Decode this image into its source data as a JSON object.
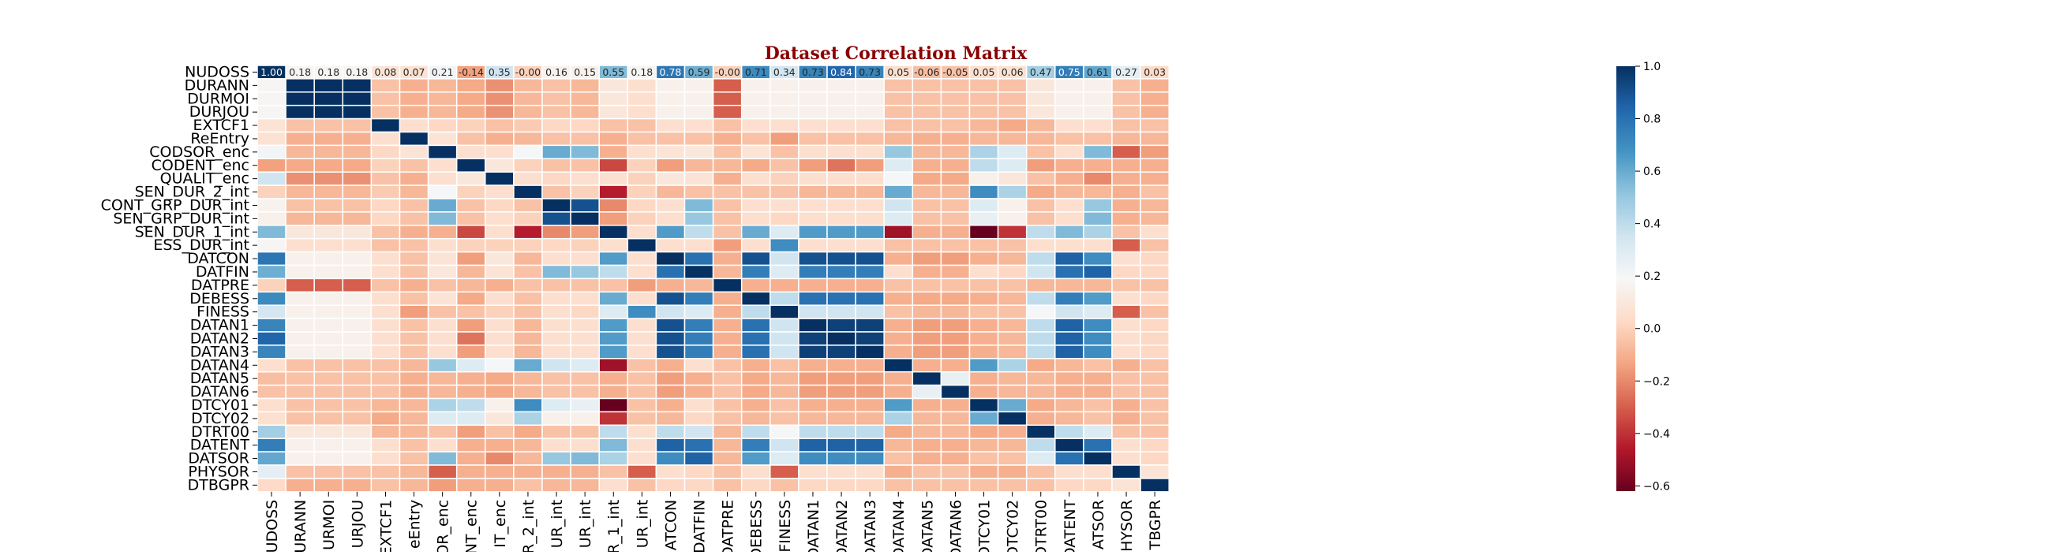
{
  "chart_data": {
    "type": "heatmap",
    "title": "Dataset Correlation Matrix",
    "labels": [
      "NUDOSS",
      "DURANN",
      "DURMOI",
      "DURJOU",
      "EXTCF1",
      "ReEntry",
      "CODSOR_enc",
      "CODENT_enc",
      "QUALIT_enc",
      "SEN_DUR_2_int",
      "CONT_GRP_DUR_int",
      "SEN_GRP_DUR_int",
      "SEN_DUR_1_int",
      "ESS_DUR_int",
      "DATCON",
      "DATFIN",
      "DATPRE",
      "DEBESS",
      "FINESS",
      "DATAN1",
      "DATAN2",
      "DATAN3",
      "DATAN4",
      "DATAN5",
      "DATAN6",
      "DTCY01",
      "DTCY02",
      "DTRT00",
      "DATENT",
      "DATSOR",
      "PHYSOR",
      "DTBGPR"
    ],
    "x_tick_labels": [
      "UDOSS",
      "URANN",
      "URMOI",
      "URJOU",
      "EXTCF1",
      "eEntry",
      "OR_enc",
      "NT_enc",
      "IT_enc",
      "R_2_int",
      "UR_int",
      "UR_int",
      "R_1_int",
      "UR_int",
      "ATCON",
      "DATFIN",
      "DATPRE",
      "DEBESS",
      "FINESS",
      "DATAN1",
      "DATAN2",
      "DATAN3",
      "DATAN4",
      "DATAN5",
      "DATAN6",
      "DTCY01",
      "DTCY02",
      "DTRT00",
      "DATENT",
      "ATSOR",
      "HYSOR",
      "TBGPR"
    ],
    "first_row_annotations": [
      "1.00",
      "0.18",
      "0.18",
      "0.18",
      "0.08",
      "0.07",
      "0.21",
      "-0.14",
      "0.35",
      "-0.00",
      "0.16",
      "0.15",
      "0.55",
      "0.18",
      "0.78",
      "0.59",
      "-0.00",
      "0.71",
      "0.34",
      "0.73",
      "0.84",
      "0.73",
      "0.05",
      "-0.06",
      "-0.05",
      "0.05",
      "0.06",
      "0.47",
      "0.75",
      "0.61",
      "0.27",
      "0.03"
    ],
    "matrix": [
      [
        1.0,
        0.18,
        0.18,
        0.18,
        0.08,
        0.07,
        0.21,
        -0.14,
        0.35,
        -0.0,
        0.16,
        0.15,
        0.55,
        0.18,
        0.78,
        0.59,
        -0.0,
        0.71,
        0.34,
        0.73,
        0.84,
        0.73,
        0.05,
        -0.06,
        -0.05,
        0.05,
        0.06,
        0.47,
        0.75,
        0.61,
        0.27,
        0.03
      ],
      [
        0.18,
        1.0,
        1.0,
        1.0,
        -0.05,
        -0.1,
        -0.08,
        -0.12,
        -0.18,
        -0.08,
        -0.05,
        -0.08,
        0.1,
        0.05,
        0.15,
        0.15,
        -0.3,
        0.15,
        0.15,
        0.15,
        0.15,
        0.15,
        -0.05,
        -0.05,
        -0.05,
        -0.05,
        -0.05,
        0.1,
        0.15,
        0.15,
        -0.05,
        -0.1
      ],
      [
        0.18,
        1.0,
        1.0,
        1.0,
        -0.05,
        -0.1,
        -0.08,
        -0.12,
        -0.18,
        -0.08,
        -0.05,
        -0.08,
        0.1,
        0.05,
        0.15,
        0.15,
        -0.3,
        0.15,
        0.15,
        0.15,
        0.15,
        0.15,
        -0.05,
        -0.05,
        -0.05,
        -0.05,
        -0.05,
        0.1,
        0.15,
        0.15,
        -0.05,
        -0.1
      ],
      [
        0.18,
        1.0,
        1.0,
        1.0,
        -0.05,
        -0.1,
        -0.08,
        -0.12,
        -0.18,
        -0.08,
        -0.05,
        -0.08,
        0.1,
        0.05,
        0.15,
        0.15,
        -0.3,
        0.15,
        0.15,
        0.15,
        0.15,
        0.15,
        -0.05,
        -0.05,
        -0.05,
        -0.05,
        -0.05,
        0.1,
        0.15,
        0.15,
        -0.05,
        -0.1
      ],
      [
        0.08,
        -0.05,
        -0.05,
        -0.05,
        1.0,
        0.05,
        0.02,
        0.0,
        -0.05,
        -0.02,
        0.02,
        0.02,
        -0.05,
        -0.05,
        0.05,
        0.05,
        -0.05,
        0.05,
        0.05,
        0.05,
        0.05,
        0.05,
        -0.05,
        -0.05,
        -0.05,
        -0.08,
        -0.12,
        -0.08,
        0.05,
        0.05,
        -0.05,
        -0.05
      ],
      [
        0.07,
        -0.1,
        -0.1,
        -0.1,
        0.05,
        1.0,
        0.08,
        -0.05,
        -0.1,
        -0.08,
        -0.05,
        -0.05,
        -0.1,
        -0.05,
        -0.05,
        -0.05,
        -0.1,
        -0.05,
        -0.15,
        -0.05,
        -0.05,
        -0.05,
        -0.08,
        -0.1,
        -0.1,
        -0.08,
        -0.08,
        -0.08,
        -0.05,
        -0.05,
        -0.08,
        -0.08
      ],
      [
        0.21,
        -0.08,
        -0.08,
        -0.08,
        0.02,
        0.08,
        1.0,
        0.05,
        0.05,
        0.2,
        0.6,
        0.55,
        -0.1,
        0.05,
        0.08,
        0.1,
        -0.05,
        0.08,
        -0.05,
        0.05,
        0.05,
        0.05,
        0.5,
        -0.08,
        -0.08,
        0.45,
        0.3,
        -0.05,
        0.05,
        0.55,
        -0.3,
        -0.15
      ],
      [
        -0.14,
        -0.12,
        -0.12,
        -0.12,
        0.0,
        -0.05,
        0.05,
        1.0,
        0.1,
        0.0,
        -0.05,
        -0.05,
        -0.35,
        0.0,
        -0.15,
        -0.08,
        -0.08,
        -0.12,
        -0.05,
        -0.15,
        -0.25,
        -0.15,
        0.3,
        -0.1,
        -0.1,
        0.4,
        0.3,
        -0.15,
        -0.1,
        -0.1,
        -0.1,
        -0.1
      ],
      [
        0.35,
        -0.18,
        -0.18,
        -0.18,
        -0.05,
        -0.1,
        0.05,
        0.1,
        1.0,
        0.05,
        0.02,
        0.05,
        0.05,
        0.0,
        0.1,
        0.08,
        -0.1,
        0.05,
        0.0,
        0.05,
        0.05,
        0.05,
        0.2,
        -0.12,
        -0.12,
        0.15,
        0.1,
        -0.05,
        -0.1,
        -0.2,
        -0.1,
        -0.1
      ],
      [
        -0.0,
        -0.08,
        -0.08,
        -0.08,
        -0.02,
        -0.08,
        0.2,
        0.0,
        0.05,
        1.0,
        -0.05,
        0.0,
        -0.45,
        0.0,
        -0.08,
        -0.05,
        -0.05,
        -0.05,
        -0.05,
        -0.08,
        -0.08,
        -0.08,
        0.6,
        -0.08,
        -0.08,
        0.7,
        0.45,
        -0.12,
        -0.08,
        -0.08,
        -0.1,
        -0.05
      ],
      [
        0.16,
        -0.05,
        -0.05,
        -0.05,
        0.02,
        -0.05,
        0.6,
        -0.05,
        0.02,
        -0.05,
        1.0,
        0.9,
        -0.2,
        0.02,
        0.05,
        0.55,
        -0.05,
        0.05,
        0.05,
        0.05,
        0.05,
        0.05,
        0.35,
        -0.05,
        -0.05,
        0.3,
        0.15,
        -0.05,
        0.05,
        0.5,
        -0.1,
        -0.08
      ],
      [
        0.15,
        -0.08,
        -0.08,
        -0.08,
        0.02,
        -0.05,
        0.55,
        -0.05,
        0.05,
        0.0,
        0.9,
        1.0,
        -0.15,
        0.0,
        0.05,
        0.5,
        -0.05,
        0.05,
        0.02,
        0.05,
        0.05,
        0.05,
        0.3,
        -0.05,
        -0.05,
        0.25,
        0.15,
        -0.05,
        0.05,
        0.55,
        -0.1,
        -0.08
      ],
      [
        0.55,
        0.1,
        0.1,
        0.1,
        -0.05,
        -0.1,
        -0.1,
        -0.35,
        0.05,
        -0.45,
        -0.2,
        -0.15,
        1.0,
        0.05,
        0.65,
        0.4,
        -0.05,
        0.6,
        0.3,
        0.65,
        0.65,
        0.65,
        -0.5,
        -0.1,
        -0.1,
        -0.65,
        -0.4,
        0.4,
        0.55,
        0.45,
        -0.05,
        0.05
      ],
      [
        0.18,
        0.05,
        0.05,
        0.05,
        -0.05,
        -0.05,
        0.05,
        0.0,
        0.0,
        0.0,
        0.02,
        0.0,
        0.05,
        1.0,
        0.05,
        0.05,
        -0.15,
        0.05,
        0.7,
        0.05,
        0.05,
        0.05,
        -0.05,
        -0.05,
        -0.05,
        -0.05,
        -0.05,
        0.05,
        0.05,
        0.05,
        -0.3,
        -0.05
      ],
      [
        0.78,
        0.15,
        0.15,
        0.15,
        0.05,
        -0.05,
        0.08,
        -0.15,
        0.1,
        -0.08,
        0.05,
        0.05,
        0.65,
        0.05,
        1.0,
        0.8,
        -0.1,
        0.9,
        0.35,
        0.9,
        0.9,
        0.9,
        -0.1,
        -0.15,
        -0.15,
        -0.1,
        -0.08,
        0.4,
        0.85,
        0.7,
        0.05,
        0.02
      ],
      [
        0.59,
        0.15,
        0.15,
        0.15,
        0.05,
        -0.05,
        0.1,
        -0.08,
        0.08,
        -0.05,
        0.55,
        0.5,
        0.4,
        0.05,
        0.8,
        1.0,
        -0.08,
        0.75,
        0.3,
        0.75,
        0.75,
        0.75,
        0.05,
        -0.1,
        -0.1,
        0.05,
        0.02,
        0.35,
        0.8,
        0.85,
        0.02,
        0.02
      ],
      [
        -0.0,
        -0.3,
        -0.3,
        -0.3,
        -0.05,
        -0.1,
        -0.05,
        -0.08,
        -0.1,
        -0.05,
        -0.05,
        -0.05,
        -0.05,
        -0.15,
        -0.1,
        -0.08,
        1.0,
        -0.1,
        -0.1,
        -0.1,
        -0.1,
        -0.1,
        -0.05,
        -0.05,
        -0.05,
        -0.05,
        -0.05,
        -0.08,
        -0.08,
        -0.08,
        -0.05,
        -0.05
      ],
      [
        0.71,
        0.15,
        0.15,
        0.15,
        0.05,
        -0.05,
        0.08,
        -0.12,
        0.05,
        -0.05,
        0.05,
        0.05,
        0.6,
        0.05,
        0.9,
        0.75,
        -0.1,
        1.0,
        0.4,
        0.8,
        0.8,
        0.8,
        -0.1,
        -0.12,
        -0.12,
        -0.1,
        -0.08,
        0.4,
        0.75,
        0.65,
        0.05,
        0.02
      ],
      [
        0.34,
        0.15,
        0.15,
        0.15,
        0.05,
        -0.15,
        -0.05,
        -0.05,
        0.0,
        -0.05,
        0.05,
        0.02,
        0.3,
        0.7,
        0.35,
        0.3,
        -0.1,
        0.4,
        1.0,
        0.35,
        0.35,
        0.35,
        -0.05,
        -0.08,
        -0.08,
        -0.05,
        -0.05,
        0.2,
        0.35,
        0.3,
        -0.3,
        -0.05
      ],
      [
        0.73,
        0.15,
        0.15,
        0.15,
        0.05,
        -0.05,
        0.05,
        -0.15,
        0.05,
        -0.08,
        0.05,
        0.05,
        0.65,
        0.05,
        0.9,
        0.75,
        -0.1,
        0.8,
        0.35,
        1.0,
        0.95,
        0.95,
        -0.1,
        -0.15,
        -0.15,
        -0.1,
        -0.08,
        0.4,
        0.85,
        0.7,
        0.05,
        0.02
      ],
      [
        0.84,
        0.15,
        0.15,
        0.15,
        0.05,
        -0.05,
        0.05,
        -0.25,
        0.05,
        -0.08,
        0.05,
        0.05,
        0.65,
        0.05,
        0.9,
        0.75,
        -0.1,
        0.8,
        0.35,
        0.95,
        1.0,
        0.95,
        -0.1,
        -0.15,
        -0.15,
        -0.1,
        -0.08,
        0.4,
        0.85,
        0.7,
        0.05,
        0.02
      ],
      [
        0.73,
        0.15,
        0.15,
        0.15,
        0.05,
        -0.05,
        0.05,
        -0.15,
        0.05,
        -0.08,
        0.05,
        0.05,
        0.65,
        0.05,
        0.9,
        0.75,
        -0.1,
        0.8,
        0.35,
        0.95,
        0.95,
        1.0,
        -0.1,
        -0.15,
        -0.15,
        -0.1,
        -0.08,
        0.4,
        0.85,
        0.7,
        0.05,
        0.02
      ],
      [
        0.05,
        -0.05,
        -0.05,
        -0.05,
        -0.05,
        -0.08,
        0.5,
        0.3,
        0.2,
        0.6,
        0.35,
        0.3,
        -0.5,
        -0.05,
        -0.1,
        0.05,
        -0.05,
        -0.1,
        -0.05,
        -0.1,
        -0.1,
        -0.1,
        1.0,
        -0.1,
        -0.1,
        0.65,
        0.45,
        -0.12,
        -0.08,
        -0.05,
        -0.1,
        -0.05
      ],
      [
        -0.06,
        -0.05,
        -0.05,
        -0.05,
        -0.05,
        -0.1,
        -0.08,
        -0.1,
        -0.12,
        -0.08,
        -0.05,
        -0.05,
        -0.1,
        -0.05,
        -0.15,
        -0.1,
        -0.05,
        -0.12,
        -0.08,
        -0.15,
        -0.15,
        -0.15,
        -0.1,
        1.0,
        0.25,
        -0.1,
        -0.08,
        -0.08,
        -0.1,
        -0.1,
        -0.05,
        -0.05
      ],
      [
        -0.05,
        -0.05,
        -0.05,
        -0.05,
        -0.05,
        -0.1,
        -0.08,
        -0.1,
        -0.12,
        -0.08,
        -0.05,
        -0.05,
        -0.1,
        -0.05,
        -0.15,
        -0.1,
        -0.05,
        -0.12,
        -0.08,
        -0.15,
        -0.15,
        -0.15,
        -0.1,
        0.25,
        1.0,
        -0.1,
        -0.08,
        -0.08,
        -0.1,
        -0.1,
        -0.05,
        -0.05
      ],
      [
        0.05,
        -0.05,
        -0.05,
        -0.05,
        -0.08,
        -0.08,
        0.45,
        0.4,
        0.15,
        0.7,
        0.3,
        0.25,
        -0.65,
        -0.05,
        -0.1,
        0.05,
        -0.05,
        -0.1,
        -0.05,
        -0.1,
        -0.1,
        -0.1,
        0.65,
        -0.1,
        -0.1,
        1.0,
        0.6,
        -0.12,
        -0.08,
        -0.05,
        -0.1,
        -0.05
      ],
      [
        0.06,
        -0.05,
        -0.05,
        -0.05,
        -0.12,
        -0.08,
        0.3,
        0.3,
        0.1,
        0.45,
        0.15,
        0.15,
        -0.4,
        -0.05,
        -0.08,
        0.02,
        -0.05,
        -0.08,
        -0.05,
        -0.08,
        -0.08,
        -0.08,
        0.45,
        -0.08,
        -0.08,
        0.6,
        1.0,
        -0.1,
        -0.08,
        -0.05,
        -0.1,
        -0.05
      ],
      [
        0.47,
        0.1,
        0.1,
        0.1,
        -0.08,
        -0.08,
        -0.05,
        -0.15,
        -0.05,
        -0.12,
        -0.05,
        -0.05,
        0.4,
        0.05,
        0.4,
        0.35,
        -0.08,
        0.4,
        0.2,
        0.4,
        0.4,
        0.4,
        -0.12,
        -0.08,
        -0.08,
        -0.12,
        -0.1,
        1.0,
        0.4,
        0.3,
        -0.05,
        -0.05
      ],
      [
        0.75,
        0.15,
        0.15,
        0.15,
        0.05,
        -0.05,
        0.05,
        -0.1,
        -0.1,
        -0.08,
        0.05,
        0.05,
        0.55,
        0.05,
        0.85,
        0.8,
        -0.08,
        0.75,
        0.35,
        0.85,
        0.85,
        0.85,
        -0.08,
        -0.1,
        -0.1,
        -0.08,
        -0.08,
        0.4,
        1.0,
        0.8,
        0.05,
        0.02
      ],
      [
        0.61,
        0.15,
        0.15,
        0.15,
        0.05,
        -0.05,
        0.55,
        -0.1,
        -0.2,
        -0.08,
        0.5,
        0.55,
        0.45,
        0.05,
        0.7,
        0.85,
        -0.08,
        0.65,
        0.3,
        0.7,
        0.7,
        0.7,
        -0.05,
        -0.1,
        -0.1,
        -0.05,
        -0.05,
        0.3,
        0.8,
        1.0,
        0.05,
        0.02
      ],
      [
        0.27,
        -0.05,
        -0.05,
        -0.05,
        -0.05,
        -0.08,
        -0.3,
        -0.1,
        -0.1,
        -0.1,
        -0.1,
        -0.1,
        -0.05,
        -0.3,
        0.05,
        0.02,
        -0.05,
        0.05,
        -0.3,
        0.05,
        0.05,
        0.05,
        -0.1,
        -0.05,
        -0.05,
        -0.1,
        -0.1,
        -0.05,
        0.05,
        0.05,
        1.0,
        0.08
      ],
      [
        0.03,
        -0.1,
        -0.1,
        -0.1,
        -0.05,
        -0.08,
        -0.15,
        -0.1,
        -0.1,
        -0.05,
        -0.08,
        -0.08,
        0.05,
        -0.05,
        0.02,
        0.02,
        -0.05,
        0.02,
        -0.05,
        0.02,
        0.02,
        0.02,
        -0.05,
        -0.05,
        -0.05,
        -0.05,
        -0.05,
        -0.05,
        0.02,
        0.02,
        0.08,
        1.0
      ]
    ],
    "vmin": -0.62,
    "vmax": 1.0,
    "colormap": "RdBu",
    "colorbar_ticks": [
      "1.0",
      "0.8",
      "0.6",
      "0.4",
      "0.2",
      "0.0",
      "−0.2",
      "−0.4",
      "−0.6"
    ],
    "colorbar_tick_values": [
      1.0,
      0.8,
      0.6,
      0.4,
      0.2,
      0.0,
      -0.2,
      -0.4,
      -0.6
    ],
    "annotated_rows": [
      0
    ],
    "grid_line_color": "#ffffff",
    "title_color": "#8b0000"
  }
}
